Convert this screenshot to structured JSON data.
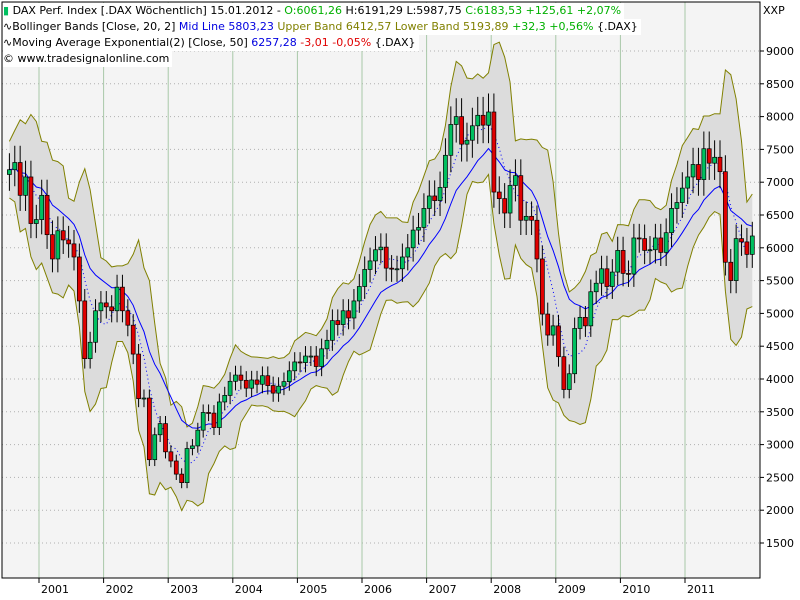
{
  "legend": {
    "line1": {
      "name": "DAX Perf. Index [.DAX  Wöchentlich] 15.01.2012 -",
      "open": "O:6061,26",
      "high": "H:6191,29",
      "low": "L:5987,75",
      "close": "C:6183,53",
      "change": "+125,61",
      "pct": "+2,07%"
    },
    "line2": {
      "name": "Bollinger Bands [Close, 20, 2]",
      "mid": "Mid Line 5803,23",
      "upper": "Upper Band 6412,57",
      "lower": "Lower Band 5193,89",
      "change": "+32,3",
      "pct": "+0,56%",
      "sym": "{.DAX}"
    },
    "line3": {
      "name": "Moving Average Exponential(2) [Close, 50]",
      "value": "6257,28",
      "change": "-3,01",
      "pct": "-0,05%",
      "sym": "{.DAX}"
    },
    "line4": "© www.tradesignalonline.com"
  },
  "axis_unit": "XXP",
  "colors": {
    "up": "#00c060",
    "down": "#e00000",
    "band_fill": "#dcdcdc",
    "band_edge": "#808000",
    "mid_line": "#0000ff",
    "ema": "#0000ff",
    "grid": "#a8c8a8",
    "background": "#f4f4f4"
  },
  "chart_data": {
    "type": "candlestick",
    "title": "DAX Perf. Index [.DAX  Wöchentlich]",
    "x_start": "2000-07",
    "interval": "monthly (approximated from weekly)",
    "closes": [
      7190,
      7300,
      6800,
      7080,
      6370,
      6430,
      6800,
      6200,
      5830,
      6260,
      6120,
      6060,
      5860,
      5190,
      4310,
      4560,
      5040,
      5160,
      5100,
      5040,
      5400,
      5040,
      4820,
      4380,
      3700,
      3710,
      2770,
      3150,
      3320,
      2890,
      2750,
      2550,
      2420,
      2940,
      2980,
      3220,
      3490,
      3480,
      3260,
      3650,
      3750,
      3965,
      4060,
      3980,
      3860,
      3985,
      3920,
      4050,
      3900,
      3785,
      3890,
      3960,
      4125,
      4260,
      4250,
      4350,
      4350,
      4190,
      4460,
      4590,
      4890,
      4830,
      5040,
      4930,
      5190,
      5410,
      5670,
      5800,
      5970,
      6010,
      5690,
      5680,
      5680,
      5860,
      6000,
      6270,
      6310,
      6600,
      6790,
      6720,
      6920,
      7410,
      7880,
      8000,
      7580,
      7640,
      7860,
      8020,
      7870,
      8070,
      6850,
      6750,
      6530,
      6950,
      7100,
      6420,
      6480,
      6420,
      5830,
      4990,
      4670,
      4810,
      4340,
      3840,
      4080,
      4770,
      4940,
      4810,
      5330,
      5460,
      5680,
      5410,
      5630,
      5960,
      5610,
      5600,
      6150,
      6140,
      5960,
      5970,
      6150,
      5930,
      6230,
      6600,
      6690,
      6910,
      7080,
      7270,
      7040,
      7510,
      7290,
      7380,
      7160,
      5780,
      5500,
      6140,
      6090,
      5900,
      6180
    ],
    "x_ticks": [
      "2001",
      "2002",
      "2003",
      "2004",
      "2005",
      "2006",
      "2007",
      "2008",
      "2009",
      "2010",
      "2011"
    ],
    "y_ticks": [
      1500,
      2000,
      2500,
      3000,
      3500,
      4000,
      4500,
      5000,
      5500,
      6000,
      6500,
      7000,
      7500,
      8000,
      8500,
      9000
    ],
    "ylim": [
      1100,
      9750
    ],
    "overlays": [
      "Bollinger Bands (20, 2)",
      "EMA (50)"
    ],
    "grid": true
  }
}
